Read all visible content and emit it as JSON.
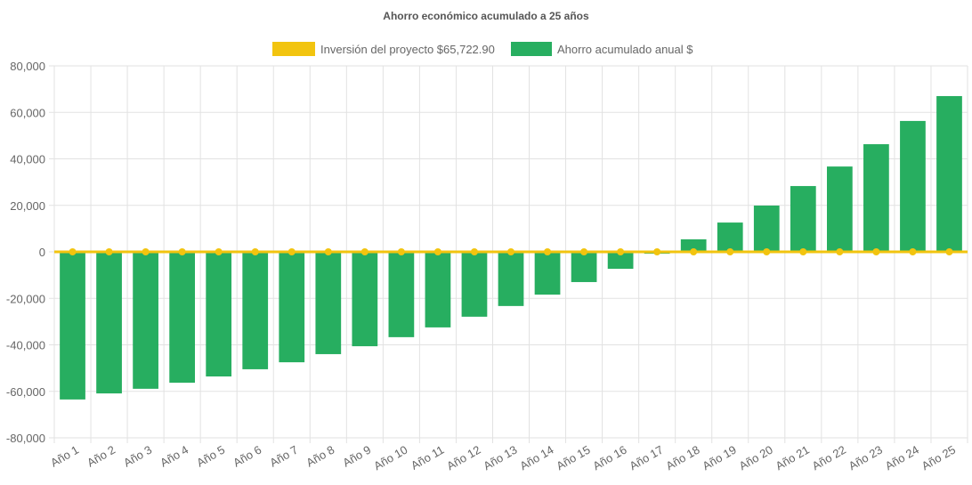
{
  "chart_data": {
    "type": "bar",
    "title": "Ahorro económico acumulado a 25 años",
    "xlabel": "",
    "ylabel": "",
    "ylim": [
      -80000,
      80000
    ],
    "yticks": [
      80000,
      60000,
      40000,
      20000,
      0,
      -20000,
      -40000,
      -60000,
      -80000
    ],
    "ytick_labels": [
      "80,000",
      "60,000",
      "40,000",
      "20,000",
      "0",
      "-20,000",
      "-40,000",
      "-60,000",
      "-80,000"
    ],
    "grid": true,
    "legend_position": "top",
    "categories": [
      "Año 1",
      "Año 2",
      "Año 3",
      "Año 4",
      "Año 5",
      "Año 6",
      "Año 7",
      "Año 8",
      "Año 9",
      "Año 10",
      "Año 11",
      "Año 12",
      "Año 13",
      "Año 14",
      "Año 15",
      "Año 16",
      "Año 17",
      "Año 18",
      "Año 19",
      "Año 20",
      "Año 21",
      "Año 22",
      "Año 23",
      "Año 24",
      "Año 25"
    ],
    "series": [
      {
        "name": "Inversión del proyecto $65,722.90",
        "type": "line",
        "color": "#f2c40f",
        "values": [
          0,
          0,
          0,
          0,
          0,
          0,
          0,
          0,
          0,
          0,
          0,
          0,
          0,
          0,
          0,
          0,
          0,
          0,
          0,
          0,
          0,
          0,
          0,
          0,
          0
        ]
      },
      {
        "name": "Ahorro acumulado anual $",
        "type": "bar",
        "color": "#27ae60",
        "values": [
          -63500,
          -60900,
          -58900,
          -56300,
          -53600,
          -50500,
          -47500,
          -44000,
          -40600,
          -36700,
          -32500,
          -27900,
          -23300,
          -18400,
          -13000,
          -7300,
          -800,
          5400,
          12600,
          19900,
          28300,
          36700,
          46300,
          56300,
          67000
        ]
      }
    ]
  }
}
